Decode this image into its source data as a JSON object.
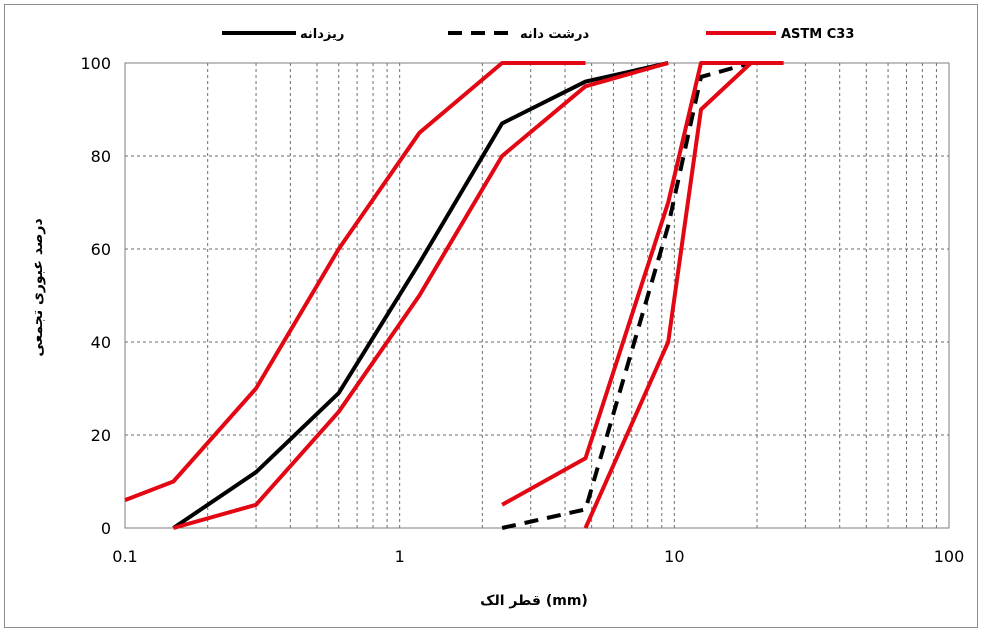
{
  "chart_data": {
    "type": "line",
    "xscale": "log",
    "xlim": [
      0.1,
      100
    ],
    "ylim": [
      0,
      100
    ],
    "x_tick_labels": [
      "0.1",
      "1",
      "10",
      "100"
    ],
    "y_tick_labels": [
      "0",
      "20",
      "40",
      "60",
      "80",
      "100"
    ],
    "xlabel": "قطر الک (mm)",
    "ylabel": "درصد عبوری تجمعی",
    "grid": true,
    "legend_position": "top",
    "legend": [
      {
        "name": "ریزدانه",
        "color": "#000000",
        "style": "solid"
      },
      {
        "name": "درشت دانه",
        "color": "#000000",
        "style": "dashed"
      },
      {
        "name": "ASTM C33",
        "color": "#e30613",
        "style": "solid"
      }
    ],
    "series": [
      {
        "legend_index": 0,
        "name": "ریزدانه",
        "color": "#000000",
        "style": "solid",
        "points": [
          [
            0.15,
            0
          ],
          [
            0.3,
            12
          ],
          [
            0.6,
            29
          ],
          [
            1.18,
            57
          ],
          [
            2.36,
            87
          ],
          [
            4.75,
            96
          ],
          [
            9.5,
            100
          ]
        ]
      },
      {
        "legend_index": 1,
        "name": "درشت دانه",
        "color": "#000000",
        "style": "dashed",
        "points": [
          [
            2.36,
            0
          ],
          [
            4.75,
            4
          ],
          [
            9.5,
            65
          ],
          [
            12.5,
            97
          ],
          [
            19,
            100
          ],
          [
            25,
            100
          ]
        ]
      },
      {
        "legend_index": 2,
        "name": "ASTM C33",
        "color": "#e30613",
        "style": "solid",
        "points": [
          [
            0.1,
            6
          ],
          [
            0.15,
            10
          ],
          [
            0.3,
            30
          ],
          [
            0.6,
            60
          ],
          [
            1.18,
            85
          ],
          [
            2.36,
            100
          ],
          [
            4.75,
            100
          ]
        ]
      },
      {
        "legend_index": 2,
        "color": "#e30613",
        "style": "solid",
        "points": [
          [
            0.15,
            0
          ],
          [
            0.3,
            5
          ],
          [
            0.6,
            25
          ],
          [
            1.18,
            50
          ],
          [
            2.36,
            80
          ],
          [
            4.75,
            95
          ],
          [
            9.5,
            100
          ]
        ]
      },
      {
        "legend_index": 2,
        "color": "#e30613",
        "style": "solid",
        "points": [
          [
            2.36,
            5
          ],
          [
            4.75,
            15
          ],
          [
            9.5,
            70
          ],
          [
            12.5,
            100
          ],
          [
            19,
            100
          ]
        ]
      },
      {
        "legend_index": 2,
        "color": "#e30613",
        "style": "solid",
        "points": [
          [
            4.75,
            0
          ],
          [
            9.5,
            40
          ],
          [
            12.5,
            90
          ],
          [
            19,
            100
          ],
          [
            25,
            100
          ]
        ]
      }
    ]
  }
}
